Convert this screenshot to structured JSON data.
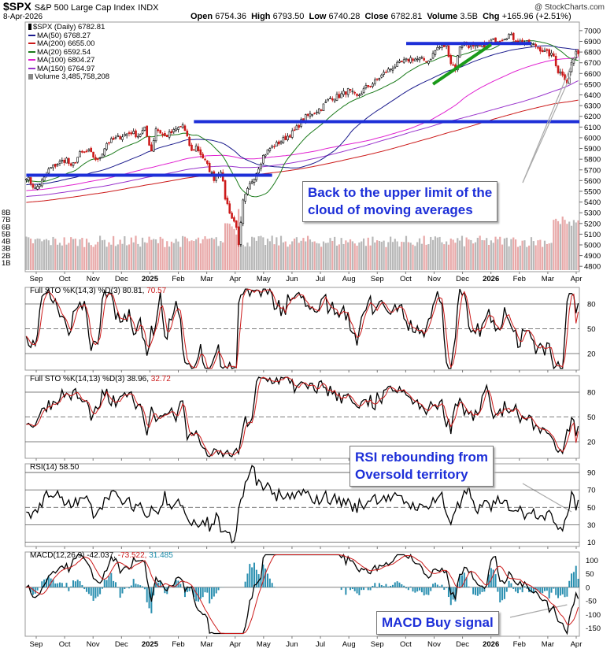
{
  "header": {
    "symbol": "$SPX",
    "name": "S&P 500 Large Cap Index",
    "exchange": "INDX",
    "date": "8-Apr-2026",
    "open_label": "Open",
    "open": "6754.36",
    "high_label": "High",
    "high": "6793.50",
    "low_label": "Low",
    "low": "6740.28",
    "close_label": "Close",
    "close": "6782.81",
    "volume_label": "Volume",
    "volume": "3.5B",
    "chg_label": "Chg",
    "chg": "+165.96 (+2.51%)",
    "watermark": "@ StockCharts.com"
  },
  "legend": [
    {
      "label": "$SPX (Daily) 6782.81",
      "color": "#000000",
      "icon": "candle-icon"
    },
    {
      "label": "MA(50) 6768.27",
      "color": "#1a1a8c",
      "icon": "line-swatch-icon"
    },
    {
      "label": "MA(200) 6655.00",
      "color": "#cc1a1a",
      "icon": "line-swatch-icon"
    },
    {
      "label": "MA(20) 6592.54",
      "color": "#1a7a1a",
      "icon": "line-swatch-icon"
    },
    {
      "label": "MA(100) 6804.27",
      "color": "#e020d0",
      "icon": "line-swatch-icon"
    },
    {
      "label": "MA(150) 6764.97",
      "color": "#9933cc",
      "icon": "line-swatch-icon"
    },
    {
      "label": "Volume 3,485,758,208",
      "color": "#888888",
      "icon": "volume-icon"
    }
  ],
  "annotations": {
    "callout_price": "Back to the upper limit of the\ncloud of moving averages",
    "callout_rsi": "RSI rebounding from\nOversold territory",
    "callout_macd": "MACD Buy signal"
  },
  "panels": {
    "sto1": {
      "label": "Full STO %K(14,3) %D(3) 80.81,",
      "d_value": "70.57"
    },
    "sto2": {
      "label": "Full STO %K(14,13) %D(3) 38.96,",
      "d_value": "32.72"
    },
    "rsi": {
      "label": "RSI(14) 58.50"
    },
    "macd": {
      "label": "MACD(12,26,9) -42.037,",
      "signal": "-73.522,",
      "hist": "31.485"
    }
  },
  "chart_data": {
    "type": "line",
    "title": "$SPX S&P 500 Large Cap Index INDX (Daily)",
    "x_months": [
      "Sep",
      "Oct",
      "Nov",
      "Dec",
      "2025",
      "Feb",
      "Mar",
      "Apr",
      "May",
      "Jun",
      "Jul",
      "Aug",
      "Sep",
      "Oct",
      "Nov",
      "Dec",
      "2026",
      "Feb",
      "Mar",
      "Apr"
    ],
    "price_axis": {
      "ylim": [
        4750,
        7080
      ],
      "ticks": [
        4800,
        4900,
        5000,
        5100,
        5200,
        5300,
        5400,
        5500,
        5600,
        5700,
        5800,
        5900,
        6000,
        6100,
        6200,
        6300,
        6400,
        6500,
        6600,
        6700,
        6800,
        6900,
        7000
      ]
    },
    "volume_axis": {
      "ticks": [
        "1B",
        "2B",
        "3B",
        "4B",
        "5B",
        "6B",
        "7B",
        "8B"
      ]
    },
    "price_anchors": [
      [
        0,
        5640
      ],
      [
        4,
        5520
      ],
      [
        8,
        5620
      ],
      [
        10,
        5700
      ],
      [
        14,
        5760
      ],
      [
        18,
        5800
      ],
      [
        20,
        5720
      ],
      [
        24,
        5850
      ],
      [
        28,
        5870
      ],
      [
        32,
        5780
      ],
      [
        36,
        5950
      ],
      [
        40,
        5990
      ],
      [
        44,
        6030
      ],
      [
        47,
        6050
      ],
      [
        50,
        6020
      ],
      [
        53,
        6080
      ],
      [
        56,
        5880
      ],
      [
        58,
        6090
      ],
      [
        62,
        6010
      ],
      [
        66,
        6060
      ],
      [
        70,
        6120
      ],
      [
        74,
        5870
      ],
      [
        76,
        5920
      ],
      [
        80,
        5780
      ],
      [
        84,
        5620
      ],
      [
        87,
        5700
      ],
      [
        89,
        5440
      ],
      [
        92,
        5250
      ],
      [
        94,
        5180
      ],
      [
        95,
        4980
      ],
      [
        97,
        5400
      ],
      [
        100,
        5560
      ],
      [
        103,
        5680
      ],
      [
        106,
        5830
      ],
      [
        109,
        5900
      ],
      [
        112,
        5940
      ],
      [
        116,
        6000
      ],
      [
        120,
        6060
      ],
      [
        124,
        6180
      ],
      [
        128,
        6230
      ],
      [
        132,
        6280
      ],
      [
        136,
        6370
      ],
      [
        140,
        6390
      ],
      [
        144,
        6440
      ],
      [
        148,
        6380
      ],
      [
        152,
        6470
      ],
      [
        156,
        6520
      ],
      [
        160,
        6600
      ],
      [
        164,
        6660
      ],
      [
        168,
        6700
      ],
      [
        172,
        6740
      ],
      [
        176,
        6730
      ],
      [
        180,
        6720
      ],
      [
        184,
        6840
      ],
      [
        188,
        6860
      ],
      [
        190,
        6700
      ],
      [
        192,
        6650
      ],
      [
        194,
        6860
      ],
      [
        196,
        6880
      ],
      [
        200,
        6840
      ],
      [
        204,
        6850
      ],
      [
        208,
        6900
      ],
      [
        212,
        6920
      ],
      [
        216,
        6960
      ],
      [
        220,
        6900
      ],
      [
        224,
        6880
      ],
      [
        228,
        6860
      ],
      [
        232,
        6800
      ],
      [
        236,
        6760
      ],
      [
        238,
        6620
      ],
      [
        240,
        6600
      ],
      [
        242,
        6520
      ],
      [
        244,
        6700
      ],
      [
        246,
        6783
      ]
    ],
    "moving_averages": {
      "MA20": {
        "value": 6592.54,
        "color": "#1a7a1a"
      },
      "MA50": {
        "value": 6768.27,
        "color": "#1a1a8c"
      },
      "MA100": {
        "value": 6804.27,
        "color": "#e020d0"
      },
      "MA150": {
        "value": 6764.97,
        "color": "#9933cc"
      },
      "MA200": {
        "value": 6655.0,
        "color": "#cc1a1a"
      }
    },
    "horizontal_lines": [
      {
        "level": 6880,
        "from_index": 170,
        "to_index": 226,
        "color": "#1d2fd8"
      },
      {
        "level": 6150,
        "from_index": 75,
        "to_index": 248,
        "color": "#1d2fd8"
      },
      {
        "level": 5650,
        "from_index": 0,
        "to_index": 110,
        "color": "#1d2fd8"
      }
    ],
    "trendline": {
      "from": [
        182,
        6500
      ],
      "to": [
        208,
        6870
      ],
      "color": "#1a9a1a"
    },
    "sto_fast": {
      "ylim": [
        0,
        100
      ],
      "ticks": [
        20,
        50,
        80
      ],
      "k": 80.81,
      "d": 70.57
    },
    "sto_slow": {
      "ylim": [
        0,
        100
      ],
      "ticks": [
        20,
        50,
        80
      ],
      "k": 38.96,
      "d": 32.72
    },
    "rsi": {
      "ylim": [
        5,
        100
      ],
      "ticks": [
        10,
        30,
        50,
        70,
        90
      ],
      "value": 58.5
    },
    "macd": {
      "ylim": [
        -180,
        130
      ],
      "ticks": [
        -150,
        -100,
        -50,
        0,
        50,
        100
      ],
      "macd": -42.037,
      "signal": -73.522,
      "hist": 31.485
    }
  }
}
